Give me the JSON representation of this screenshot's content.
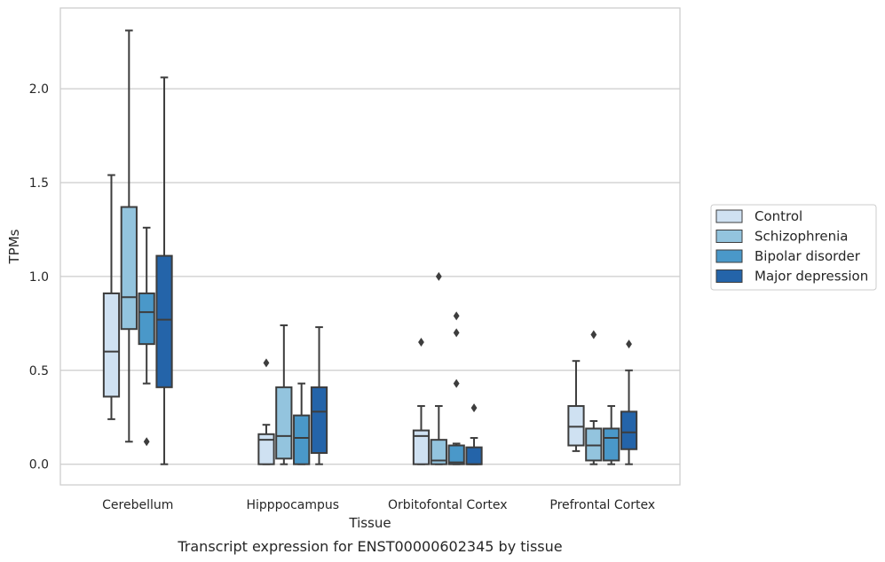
{
  "chart_data": {
    "type": "box",
    "caption": "Transcript expression for ENST00000602345 by tissue",
    "xlabel": "Tissue",
    "ylabel": "TPMs",
    "ylim": [
      -0.11,
      2.43
    ],
    "yticks": [
      0.0,
      0.5,
      1.0,
      1.5,
      2.0
    ],
    "ytick_labels": [
      "0.0",
      "0.5",
      "1.0",
      "1.5",
      "2.0"
    ],
    "grid": "horizontal",
    "legend_position": "right",
    "categories": [
      "Cerebellum",
      "Hipppocampus",
      "Orbitofontal Cortex",
      "Prefrontal Cortex"
    ],
    "series": [
      {
        "name": "Control",
        "color": "#cfe1f2",
        "boxes": [
          {
            "whislo": 0.24,
            "q1": 0.36,
            "med": 0.6,
            "q3": 0.91,
            "whishi": 1.54,
            "fliers": []
          },
          {
            "whislo": 0.0,
            "q1": 0.0,
            "med": 0.13,
            "q3": 0.16,
            "whishi": 0.21,
            "fliers": [
              0.54
            ]
          },
          {
            "whislo": 0.0,
            "q1": 0.0,
            "med": 0.15,
            "q3": 0.18,
            "whishi": 0.31,
            "fliers": [
              0.65
            ]
          },
          {
            "whislo": 0.07,
            "q1": 0.1,
            "med": 0.2,
            "q3": 0.31,
            "whishi": 0.55,
            "fliers": []
          }
        ]
      },
      {
        "name": "Schizophrenia",
        "color": "#93c4de",
        "boxes": [
          {
            "whislo": 0.12,
            "q1": 0.72,
            "med": 0.89,
            "q3": 1.37,
            "whishi": 2.31,
            "fliers": []
          },
          {
            "whislo": 0.0,
            "q1": 0.03,
            "med": 0.15,
            "q3": 0.41,
            "whishi": 0.74,
            "fliers": []
          },
          {
            "whislo": 0.0,
            "q1": 0.0,
            "med": 0.02,
            "q3": 0.13,
            "whishi": 0.31,
            "fliers": [
              1.0
            ]
          },
          {
            "whislo": 0.0,
            "q1": 0.02,
            "med": 0.1,
            "q3": 0.19,
            "whishi": 0.23,
            "fliers": [
              0.69
            ]
          }
        ]
      },
      {
        "name": "Bipolar disorder",
        "color": "#4a98c9",
        "boxes": [
          {
            "whislo": 0.43,
            "q1": 0.64,
            "med": 0.81,
            "q3": 0.91,
            "whishi": 1.26,
            "fliers": [
              0.12
            ]
          },
          {
            "whislo": 0.0,
            "q1": 0.0,
            "med": 0.14,
            "q3": 0.26,
            "whishi": 0.43,
            "fliers": []
          },
          {
            "whislo": 0.0,
            "q1": 0.0,
            "med": 0.01,
            "q3": 0.1,
            "whishi": 0.11,
            "fliers": [
              0.79,
              0.7,
              0.43
            ]
          },
          {
            "whislo": 0.0,
            "q1": 0.02,
            "med": 0.14,
            "q3": 0.19,
            "whishi": 0.31,
            "fliers": []
          }
        ]
      },
      {
        "name": "Major depression",
        "color": "#2464a9",
        "boxes": [
          {
            "whislo": 0.0,
            "q1": 0.41,
            "med": 0.77,
            "q3": 1.11,
            "whishi": 2.06,
            "fliers": []
          },
          {
            "whislo": 0.0,
            "q1": 0.06,
            "med": 0.28,
            "q3": 0.41,
            "whishi": 0.73,
            "fliers": []
          },
          {
            "whislo": 0.0,
            "q1": 0.0,
            "med": 0.0,
            "q3": 0.09,
            "whishi": 0.14,
            "fliers": [
              0.3
            ]
          },
          {
            "whislo": 0.0,
            "q1": 0.08,
            "med": 0.17,
            "q3": 0.28,
            "whishi": 0.5,
            "fliers": [
              0.64
            ]
          }
        ]
      }
    ]
  }
}
